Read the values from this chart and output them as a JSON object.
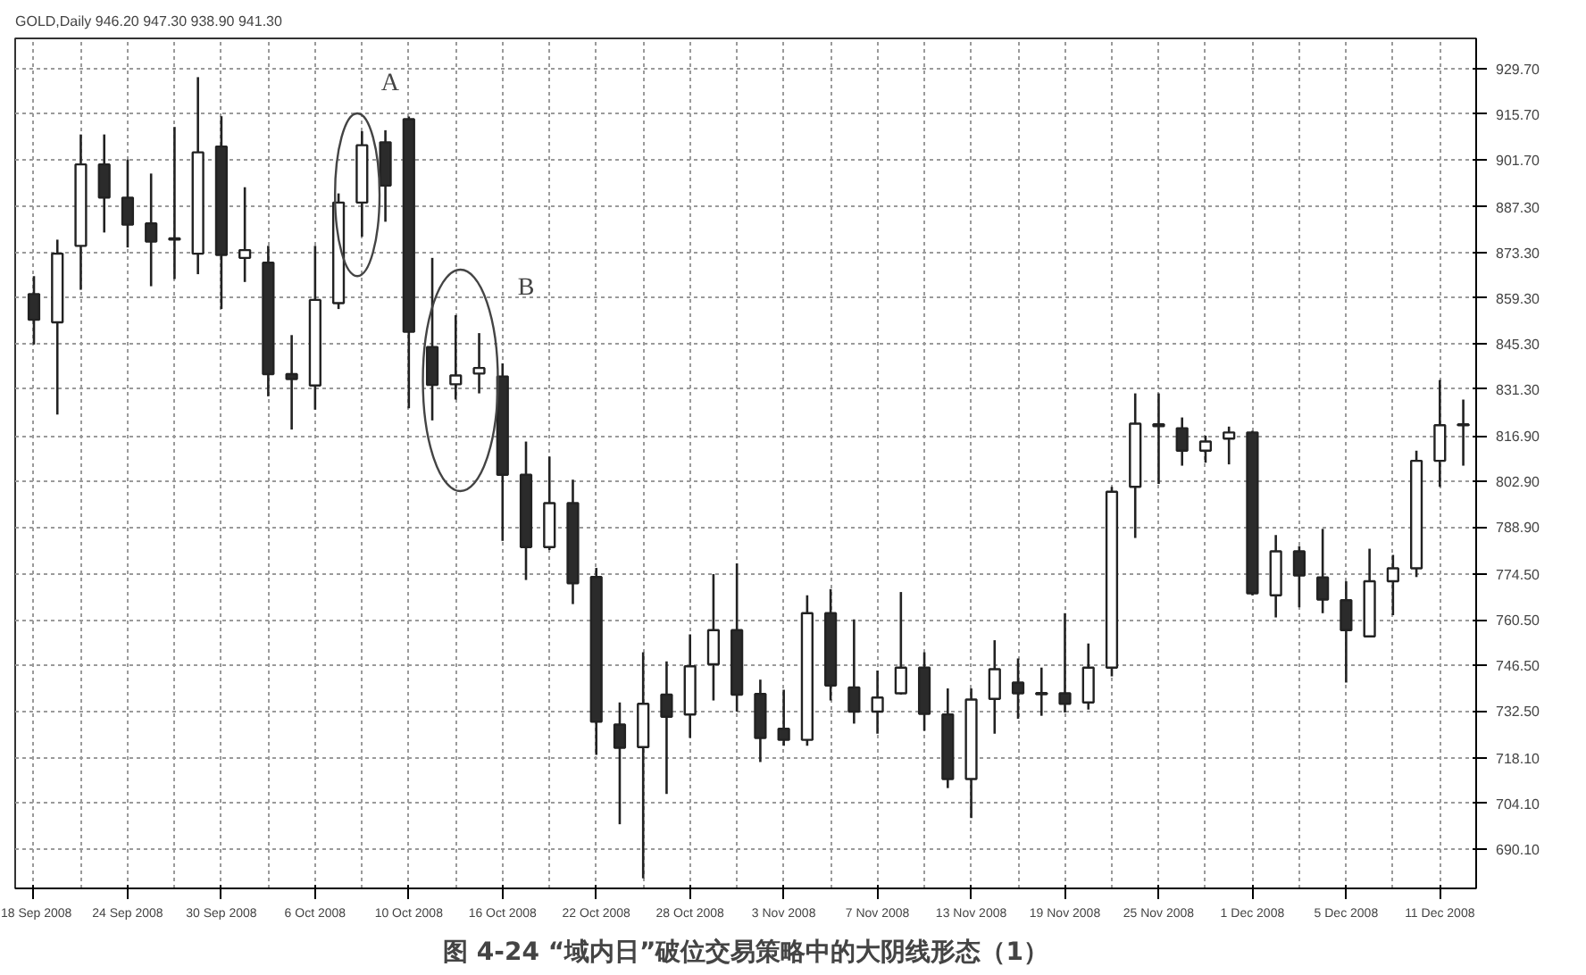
{
  "chart_data": {
    "type": "candlestick",
    "title": "图 4-24 “域内日”破位交易策略中的大阴线形态（1）",
    "subtitle": "GOLD,Daily 946.20 947.30 938.90 941.30",
    "annotations": [
      "A",
      "B"
    ],
    "categories": [
      "18 Sep 2008",
      null,
      null,
      null,
      "24 Sep 2008",
      null,
      null,
      null,
      "30 Sep 2008",
      null,
      null,
      null,
      "6 Oct 2008",
      null,
      null,
      null,
      "10 Oct 2008",
      null,
      null,
      null,
      "16 Oct 2008",
      null,
      null,
      null,
      "22 Oct 2008",
      null,
      null,
      null,
      "28 Oct 2008",
      null,
      null,
      null,
      "3 Nov 2008",
      null,
      null,
      null,
      "7 Nov 2008",
      null,
      null,
      null,
      "13 Nov 2008",
      null,
      null,
      null,
      "19 Nov 2008",
      null,
      null,
      null,
      "25 Nov 2008",
      null,
      null,
      null,
      "1 Dec 2008",
      null,
      null,
      null,
      "5 Dec 2008",
      null,
      null,
      null,
      "11 Dec 2008",
      null
    ],
    "ohlc": [
      [
        860.5,
        866,
        845,
        852.6
      ],
      [
        851.8,
        877.2,
        823.5,
        872.9
      ],
      [
        875.3,
        909.5,
        861.8,
        900.3
      ],
      [
        900.3,
        909.5,
        879.4,
        890.1
      ],
      [
        890.1,
        901.8,
        874.8,
        881.8
      ],
      [
        882.2,
        897.5,
        862.9,
        876.6
      ],
      [
        877.2,
        911.8,
        865.1,
        877.6
      ],
      [
        872.9,
        927.1,
        866.6,
        904.0
      ],
      [
        905.8,
        915.1,
        855.9,
        872.5
      ],
      [
        871.6,
        893.3,
        864.2,
        874.0
      ],
      [
        870.1,
        875.3,
        829.1,
        835.9
      ],
      [
        835.9,
        847.9,
        818.9,
        834.4
      ],
      [
        832.4,
        875.3,
        825.0,
        858.7
      ],
      [
        857.7,
        891.4,
        855.9,
        888.6
      ],
      [
        888.6,
        910.5,
        878.1,
        906.2
      ],
      [
        907.1,
        910.8,
        882.7,
        893.8
      ],
      [
        914.2,
        915.0,
        825.4,
        848.9
      ],
      [
        844.2,
        871.6,
        821.7,
        832.6
      ],
      [
        832.8,
        854.0,
        828.1,
        835.5
      ],
      [
        836.1,
        848.5,
        830.0,
        837.8
      ],
      [
        835.2,
        839.2,
        784.7,
        805.0
      ],
      [
        805.0,
        815.2,
        772.7,
        782.8
      ],
      [
        782.8,
        810.6,
        781.9,
        796.3
      ],
      [
        796.3,
        803.5,
        765.3,
        771.7
      ],
      [
        773.6,
        776.4,
        719.0,
        729.2
      ],
      [
        728.3,
        735.1,
        697.7,
        721.2
      ],
      [
        721.4,
        750.5,
        681.1,
        734.7
      ],
      [
        737.5,
        747.7,
        707.0,
        730.7
      ],
      [
        731.4,
        756.0,
        724.2,
        746.2
      ],
      [
        746.8,
        774.5,
        735.7,
        757.3
      ],
      [
        757.3,
        777.8,
        732.3,
        737.5
      ],
      [
        737.7,
        742.1,
        716.8,
        724.2
      ],
      [
        727.0,
        739.0,
        721.8,
        723.6
      ],
      [
        723.6,
        768.0,
        721.8,
        762.5
      ],
      [
        762.5,
        769.9,
        735.7,
        740.3
      ],
      [
        739.7,
        760.6,
        728.6,
        732.3
      ],
      [
        732.3,
        744.9,
        725.5,
        736.6
      ],
      [
        737.9,
        769.0,
        737.5,
        745.8
      ],
      [
        745.8,
        750.5,
        726.4,
        731.6
      ],
      [
        731.4,
        739.4,
        708.8,
        711.6
      ],
      [
        711.6,
        739.4,
        699.6,
        736.0
      ],
      [
        736.2,
        754.2,
        725.5,
        745.3
      ],
      [
        741.2,
        748.6,
        730.1,
        737.9
      ],
      [
        738.0,
        745.8,
        731.0,
        737.6
      ],
      [
        737.9,
        762.5,
        732.0,
        734.7
      ],
      [
        735.1,
        753.2,
        732.9,
        745.8
      ],
      [
        745.8,
        801.3,
        743.1,
        799.8
      ],
      [
        801.3,
        830.0,
        785.6,
        820.7
      ],
      [
        820.5,
        830.0,
        802.2,
        819.9
      ],
      [
        819.3,
        822.6,
        807.8,
        812.4
      ],
      [
        812.4,
        817.0,
        808.7,
        815.2
      ],
      [
        816.1,
        819.8,
        808.2,
        818.0
      ],
      [
        818.0,
        818.5,
        768.0,
        768.6
      ],
      [
        768.0,
        786.5,
        761.2,
        781.5
      ],
      [
        781.5,
        783.1,
        764.3,
        774.1
      ],
      [
        773.5,
        788.4,
        762.5,
        766.7
      ],
      [
        766.5,
        772.3,
        741.2,
        757.3
      ],
      [
        755.4,
        782.3,
        755.2,
        772.3
      ],
      [
        772.3,
        780.4,
        761.9,
        776.3
      ],
      [
        776.3,
        812.4,
        773.6,
        809.3
      ],
      [
        809.3,
        834.1,
        801.3,
        820.2
      ],
      [
        820.2,
        828.1,
        807.8,
        820.5
      ]
    ],
    "ylim": [
      678,
      939
    ],
    "yticks": [
      {
        "value": 929.7,
        "label": "929.70"
      },
      {
        "value": 915.7,
        "label": "915.70"
      },
      {
        "value": 901.7,
        "label": "901.70"
      },
      {
        "value": 887.3,
        "label": "887.30"
      },
      {
        "value": 873.3,
        "label": "873.30"
      },
      {
        "value": 859.3,
        "label": "859.30"
      },
      {
        "value": 845.3,
        "label": "845.30"
      },
      {
        "value": 831.3,
        "label": "831.30"
      },
      {
        "value": 816.9,
        "label": "816.90"
      },
      {
        "value": 802.9,
        "label": "802.90"
      },
      {
        "value": 788.9,
        "label": "788.90"
      },
      {
        "value": 774.5,
        "label": "774.50"
      },
      {
        "value": 760.5,
        "label": "760.50"
      },
      {
        "value": 746.5,
        "label": "746.50"
      },
      {
        "value": 732.5,
        "label": "732.50"
      },
      {
        "value": 718.1,
        "label": "718.10"
      },
      {
        "value": 704.1,
        "label": "704.10"
      },
      {
        "value": 690.1,
        "label": "690.10"
      }
    ],
    "grid": true
  }
}
